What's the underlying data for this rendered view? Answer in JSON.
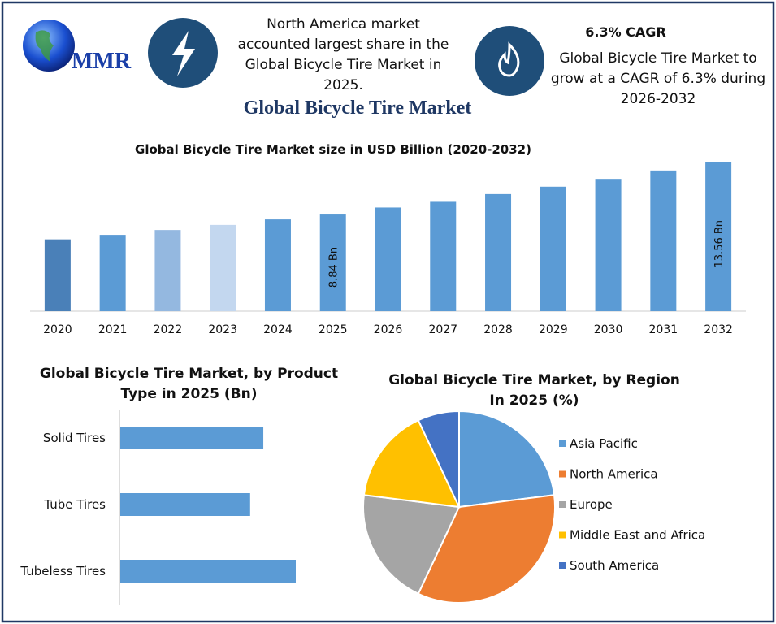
{
  "header": {
    "logo": "MMR",
    "note_left": "North America market accounted largest share in the Global Bicycle Tire Market in 2025.",
    "note_right_title": "6.3% CAGR",
    "note_right": "Global Bicycle Tire Market to grow at a CAGR of 6.3% during 2026-2032",
    "title": "Global Bicycle Tire Market"
  },
  "chart_data": [
    {
      "type": "bar",
      "title": "Global Bicycle Tire Market size in USD Billion (2020-2032)",
      "categories": [
        "2020",
        "2021",
        "2022",
        "2023",
        "2024",
        "2025",
        "2026",
        "2027",
        "2028",
        "2029",
        "2030",
        "2031",
        "2032"
      ],
      "values": [
        6.51,
        6.92,
        7.36,
        7.82,
        8.32,
        8.84,
        9.4,
        9.99,
        10.62,
        11.29,
        12.0,
        12.76,
        13.56
      ],
      "value_labels": [
        null,
        null,
        null,
        null,
        null,
        "8.84 Bn",
        null,
        null,
        null,
        null,
        null,
        null,
        "13.56 Bn"
      ],
      "colors": [
        "#4a80b8",
        "#5b9bd5",
        "#94b8e0",
        "#c3d7ef",
        "#5b9bd5",
        "#5b9bd5",
        "#5b9bd5",
        "#5b9bd5",
        "#5b9bd5",
        "#5b9bd5",
        "#5b9bd5",
        "#5b9bd5",
        "#5b9bd5"
      ]
    },
    {
      "type": "hbar",
      "title": "Global Bicycle Tire Market, by Product Type in 2025 (Bn)",
      "categories": [
        "Solid Tires",
        "Tube Tires",
        "Tubeless Tires"
      ],
      "values": [
        2.82,
        2.56,
        3.46
      ],
      "color": "#5b9bd5"
    },
    {
      "type": "pie",
      "title": "Global Bicycle Tire Market, by Region In 2025 (%)",
      "categories": [
        "Asia Pacific",
        "North America",
        "Europe",
        "Middle East and Africa",
        "South America"
      ],
      "values": [
        23,
        34,
        20,
        16,
        7
      ],
      "colors": [
        "#5b9bd5",
        "#ed7d31",
        "#a5a5a5",
        "#ffc000",
        "#4472c4"
      ],
      "legend": "right"
    }
  ]
}
